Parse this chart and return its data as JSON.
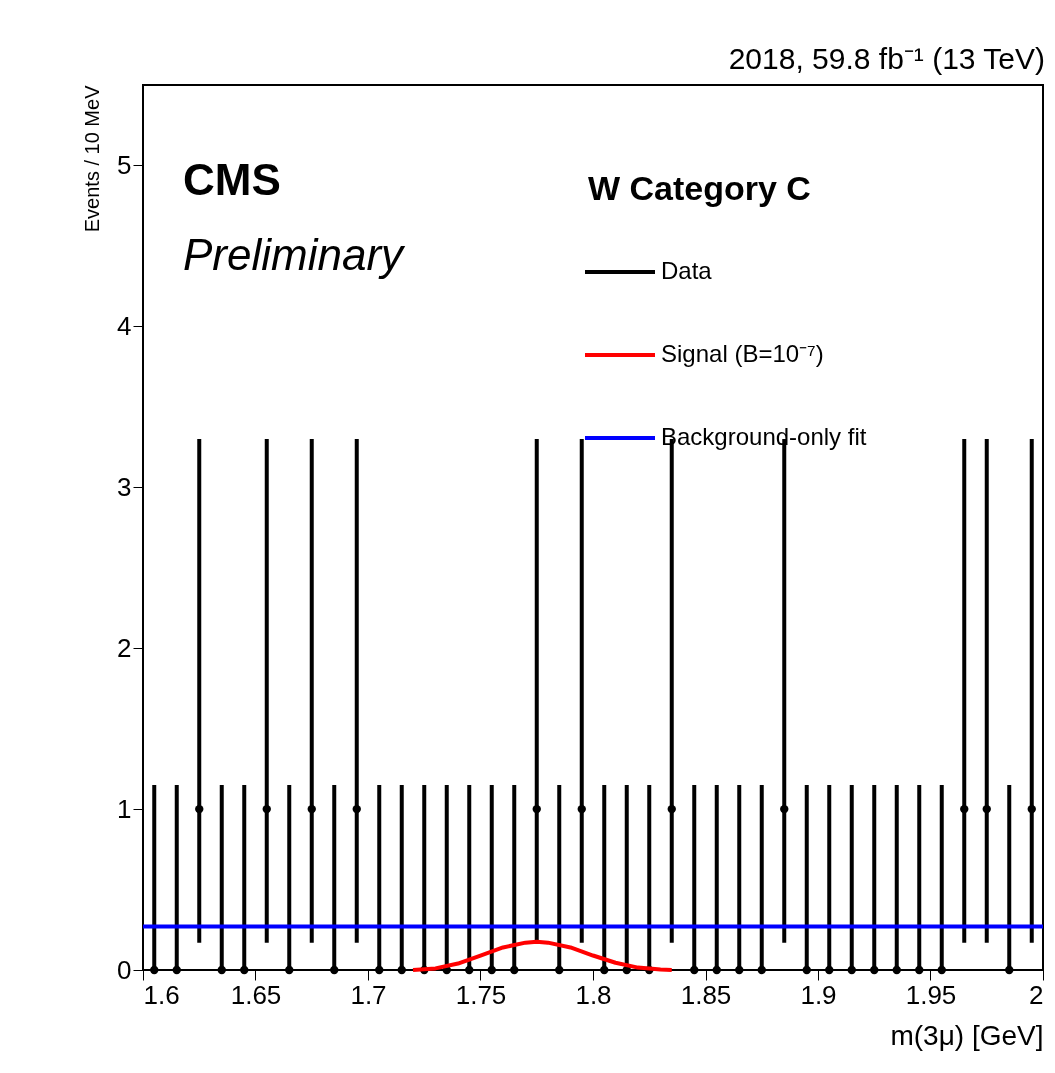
{
  "chart_data": {
    "type": "scatter",
    "title": "2018, 59.8 fb⁻¹ (13 TeV)",
    "xlabel": "m(3μ) [GeV]",
    "ylabel": "Events / 10 MeV",
    "annotations": [
      "CMS",
      "Preliminary",
      "W Category C"
    ],
    "xlim": [
      1.6,
      2.0
    ],
    "ylim": [
      0,
      5.5
    ],
    "xticks": [
      1.6,
      1.65,
      1.7,
      1.75,
      1.8,
      1.85,
      1.9,
      1.95,
      2
    ],
    "yticks": [
      0,
      1,
      2,
      3,
      4,
      5
    ],
    "grid": false,
    "legend": "top right",
    "series": [
      {
        "name": "Data",
        "color": "#000000",
        "marker": "circle",
        "x": [
          1.605,
          1.615,
          1.625,
          1.635,
          1.645,
          1.655,
          1.665,
          1.675,
          1.685,
          1.695,
          1.705,
          1.715,
          1.725,
          1.735,
          1.745,
          1.755,
          1.765,
          1.775,
          1.785,
          1.795,
          1.805,
          1.815,
          1.825,
          1.835,
          1.845,
          1.855,
          1.865,
          1.875,
          1.885,
          1.895,
          1.905,
          1.915,
          1.925,
          1.935,
          1.945,
          1.955,
          1.965,
          1.975,
          1.985,
          1.995
        ],
        "values": [
          0,
          0,
          1,
          0,
          0,
          1,
          0,
          1,
          0,
          1,
          0,
          0,
          0,
          0,
          0,
          0,
          0,
          1,
          0,
          1,
          0,
          0,
          0,
          1,
          0,
          0,
          0,
          0,
          1,
          0,
          0,
          0,
          0,
          0,
          0,
          0,
          1,
          1,
          0,
          1
        ],
        "errors": [
          [
            0,
            1.15
          ],
          [
            0,
            1.15
          ],
          [
            0.17,
            3.3
          ],
          [
            0,
            1.15
          ],
          [
            0,
            1.15
          ],
          [
            0.17,
            3.3
          ],
          [
            0,
            1.15
          ],
          [
            0.17,
            3.3
          ],
          [
            0,
            1.15
          ],
          [
            0.17,
            3.3
          ],
          [
            0,
            1.15
          ],
          [
            0,
            1.15
          ],
          [
            0,
            1.15
          ],
          [
            0,
            1.15
          ],
          [
            0,
            1.15
          ],
          [
            0,
            1.15
          ],
          [
            0,
            1.15
          ],
          [
            0.17,
            3.3
          ],
          [
            0,
            1.15
          ],
          [
            0.17,
            3.3
          ],
          [
            0,
            1.15
          ],
          [
            0,
            1.15
          ],
          [
            0,
            1.15
          ],
          [
            0.17,
            3.3
          ],
          [
            0,
            1.15
          ],
          [
            0,
            1.15
          ],
          [
            0,
            1.15
          ],
          [
            0,
            1.15
          ],
          [
            0.17,
            3.3
          ],
          [
            0,
            1.15
          ],
          [
            0,
            1.15
          ],
          [
            0,
            1.15
          ],
          [
            0,
            1.15
          ],
          [
            0,
            1.15
          ],
          [
            0,
            1.15
          ],
          [
            0,
            1.15
          ],
          [
            0.17,
            3.3
          ],
          [
            0.17,
            3.3
          ],
          [
            0,
            1.15
          ],
          [
            0.17,
            3.3
          ]
        ]
      },
      {
        "name": "Signal (B=10⁻⁷)",
        "type": "line",
        "color": "#ff0000",
        "line_style": "solid",
        "x": [
          1.72,
          1.73,
          1.74,
          1.75,
          1.76,
          1.77,
          1.775,
          1.78,
          1.79,
          1.8,
          1.81,
          1.82,
          1.83,
          1.835
        ],
        "values": [
          0,
          0.01,
          0.04,
          0.09,
          0.14,
          0.17,
          0.175,
          0.17,
          0.14,
          0.09,
          0.045,
          0.015,
          0.003,
          0
        ]
      },
      {
        "name": "Background-only fit",
        "type": "line",
        "color": "#0000ff",
        "line_style": "solid",
        "x": [
          1.6,
          2.0
        ],
        "values": [
          0.27,
          0.27
        ]
      }
    ]
  }
}
